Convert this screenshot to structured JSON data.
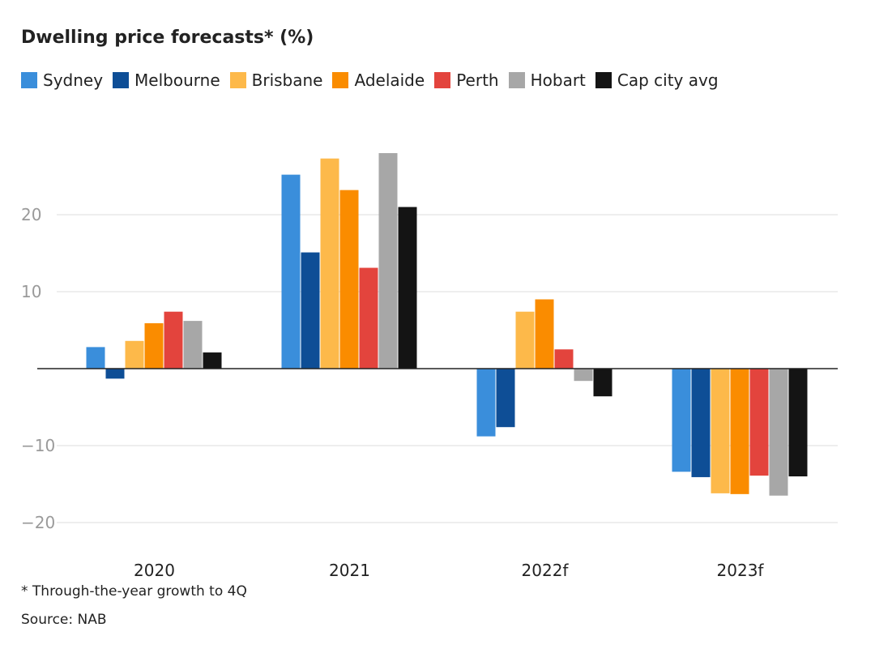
{
  "chart_data": {
    "type": "bar",
    "title": "Dwelling price forecasts* (%)",
    "xlabel": "",
    "ylabel": "",
    "categories": [
      "2020",
      "2021",
      "2022f",
      "2023f"
    ],
    "ylim": [
      -22,
      30
    ],
    "yticks": [
      20,
      10,
      -10,
      -20
    ],
    "ytick_labels": [
      "20",
      "10",
      "−10",
      "−20"
    ],
    "grid": true,
    "legend_position": "top",
    "series": [
      {
        "name": "Sydney",
        "color": "#3a8edb",
        "values": [
          2.8,
          25.2,
          -8.8,
          -13.4
        ]
      },
      {
        "name": "Melbourne",
        "color": "#0e4e96",
        "values": [
          -1.3,
          15.1,
          -7.6,
          -14.1
        ]
      },
      {
        "name": "Brisbane",
        "color": "#fdb94a",
        "values": [
          3.6,
          27.3,
          7.4,
          -16.2
        ]
      },
      {
        "name": "Adelaide",
        "color": "#fa8c00",
        "values": [
          5.9,
          23.2,
          9.0,
          -16.3
        ]
      },
      {
        "name": "Perth",
        "color": "#e3443d",
        "values": [
          7.4,
          13.1,
          2.5,
          -13.9
        ]
      },
      {
        "name": "Hobart",
        "color": "#a7a7a7",
        "values": [
          6.2,
          28.0,
          -1.6,
          -16.5
        ]
      },
      {
        "name": "Cap city avg",
        "color": "#141414",
        "values": [
          2.1,
          21.0,
          -3.6,
          -14.0
        ]
      }
    ]
  },
  "footnote": "* Through-the-year growth to 4Q",
  "source": "Source: NAB"
}
